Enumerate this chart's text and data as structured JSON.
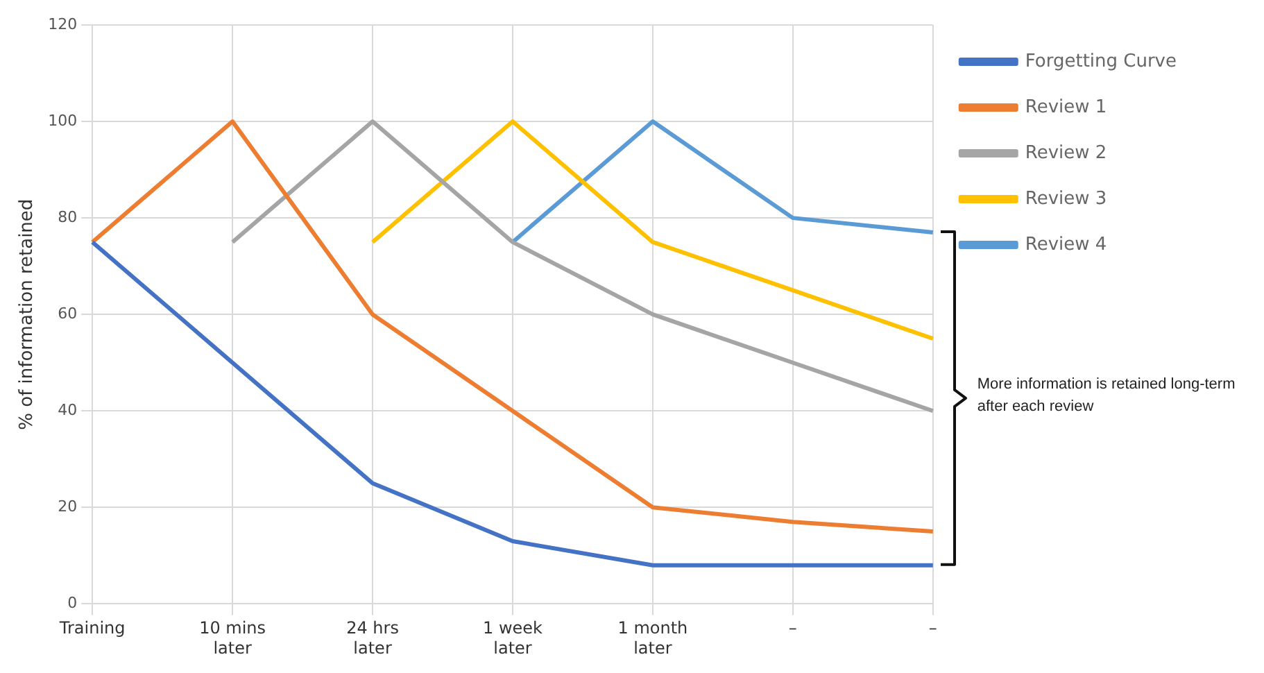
{
  "chart_data": {
    "type": "line",
    "ylabel": "% of information retained",
    "categories": [
      "Training",
      "10 mins later",
      "24 hrs later",
      "1 week later",
      "1 month later",
      "–",
      "–"
    ],
    "series": [
      {
        "name": "Forgetting Curve",
        "color": "#4472c4",
        "values": [
          75,
          50,
          25,
          13,
          8,
          8,
          8
        ]
      },
      {
        "name": "Review 1",
        "color": "#ed7d31",
        "values": [
          75,
          100,
          60,
          40,
          20,
          17,
          15
        ]
      },
      {
        "name": "Review 2",
        "color": "#a5a5a5",
        "values": [
          null,
          75,
          100,
          75,
          60,
          50,
          40
        ]
      },
      {
        "name": "Review 3",
        "color": "#ffc000",
        "values": [
          null,
          null,
          75,
          100,
          75,
          65,
          55
        ]
      },
      {
        "name": "Review 4",
        "color": "#5b9bd5",
        "values": [
          null,
          null,
          null,
          75,
          100,
          80,
          77
        ]
      }
    ],
    "ylim": [
      0,
      120
    ],
    "yticks": [
      0,
      20,
      40,
      60,
      80,
      100,
      120
    ],
    "grid": true,
    "legend": "right",
    "marker": "none",
    "line_style": "solid",
    "annotations": [
      "More information is retained long-term after each review"
    ]
  }
}
